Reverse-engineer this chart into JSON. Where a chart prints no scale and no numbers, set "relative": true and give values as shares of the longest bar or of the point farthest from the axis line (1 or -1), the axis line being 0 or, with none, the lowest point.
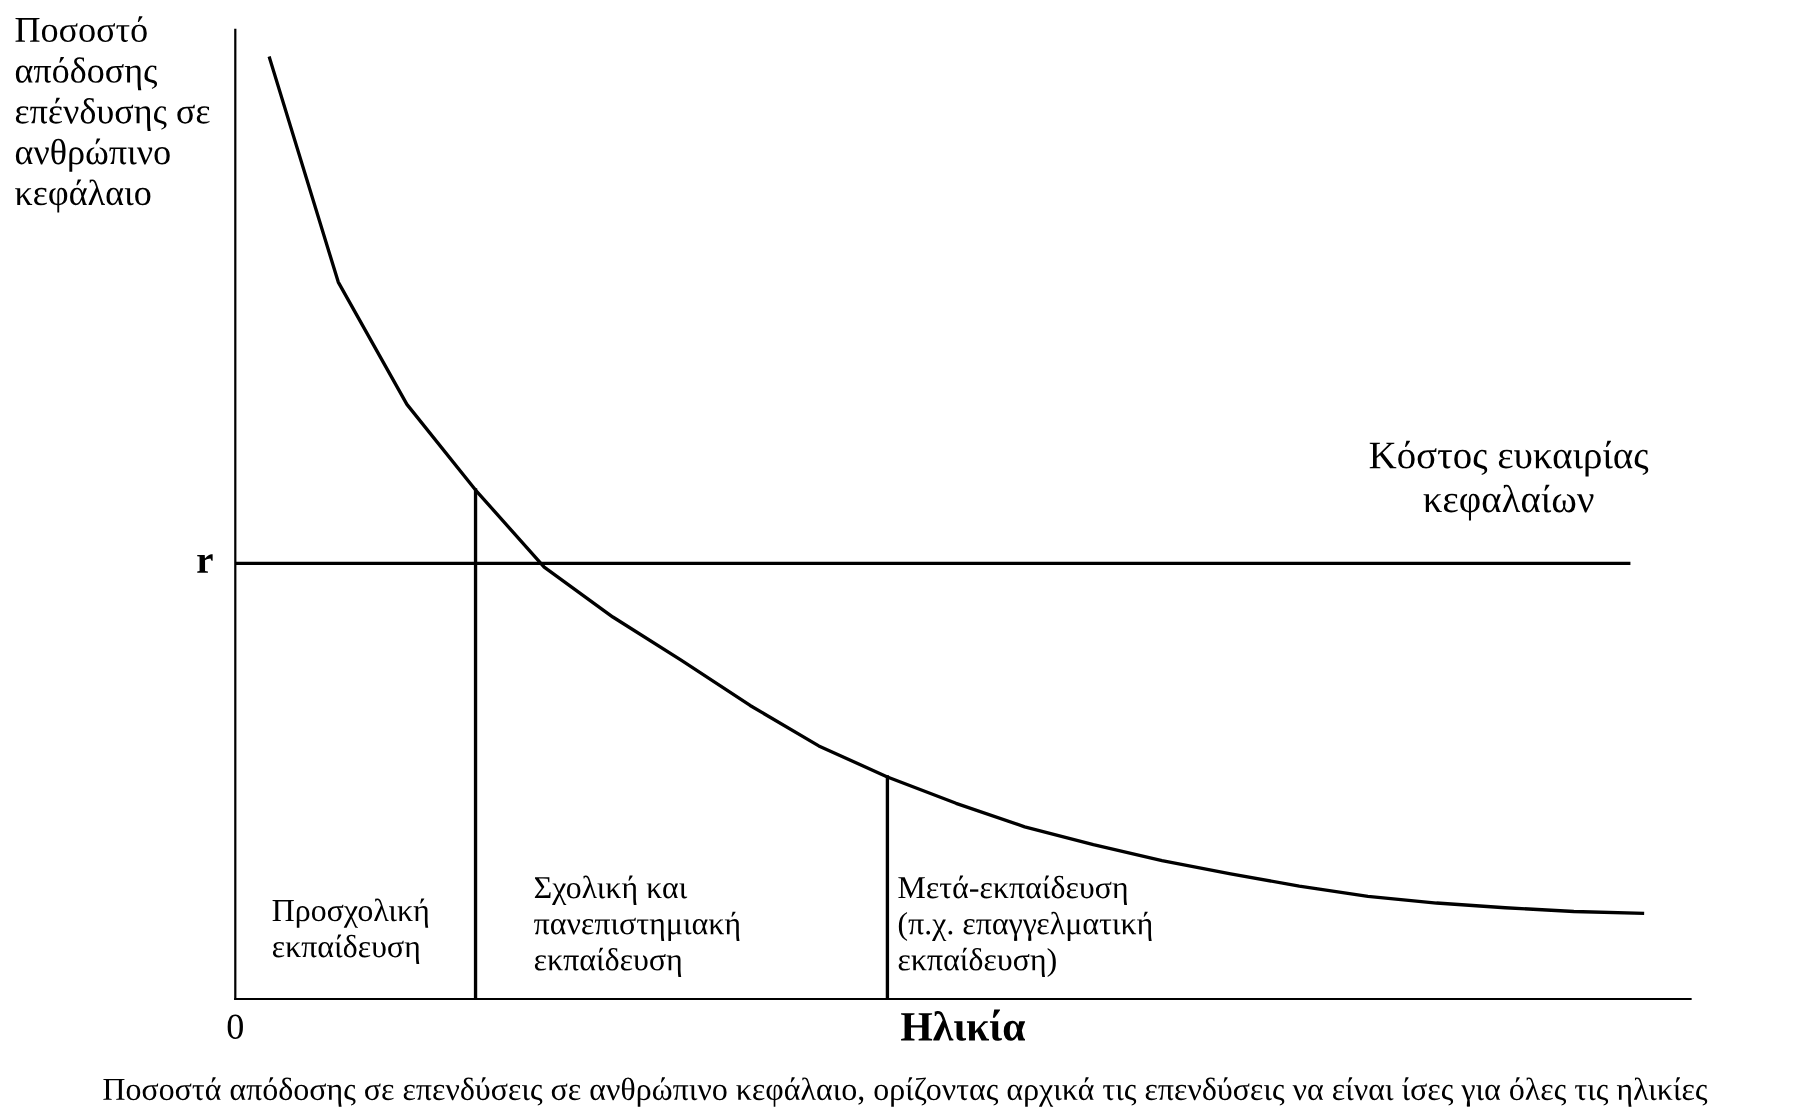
{
  "chart_data": {
    "type": "line",
    "relative": true,
    "xlabel": "Ηλικία",
    "ylabel": "Ποσοστό\nαπόδοσης\nεπένδυσης σε\nανθρώπινο\nκεφάλαιο",
    "marker": "none",
    "line_style": "solid",
    "categories": [
      null,
      null,
      null,
      null,
      null,
      null,
      null,
      null,
      null,
      null,
      null,
      null,
      null,
      null,
      null,
      null,
      null,
      null,
      null,
      null,
      null
    ],
    "series": [
      {
        "color": "#000000",
        "values": [
          1,
          0.762,
          0.632,
          0.541,
          0.459,
          0.406,
          0.36,
          0.312,
          0.269,
          0.236,
          0.208,
          0.183,
          0.164,
          0.147,
          0.133,
          0.12,
          0.109,
          0.102,
          0.097,
          0.093,
          0.091
        ]
      }
    ],
    "ref_lines": [
      {
        "axis": "y",
        "value": 0.463,
        "label": "r",
        "color": "#000000"
      }
    ],
    "annotations": [
      "Κόστος ευκαιρίας\nκεφαλαίων",
      "Προσχολική\nεκπαίδευση",
      "Σχολική και\nπανεπιστημιακή\nεκπαίδευση",
      "Μετά-εκπαίδευση\n(π.χ. επαγγελματική\nεκπαίδευση)",
      "0",
      "Ποσοστά απόδοσης σε επενδύσεις σε ανθρώπινο κεφάλαιο, ορίζοντας αρχικά τις επενδύσεις να είναι ίσες για όλες τις ηλικίες"
    ]
  }
}
